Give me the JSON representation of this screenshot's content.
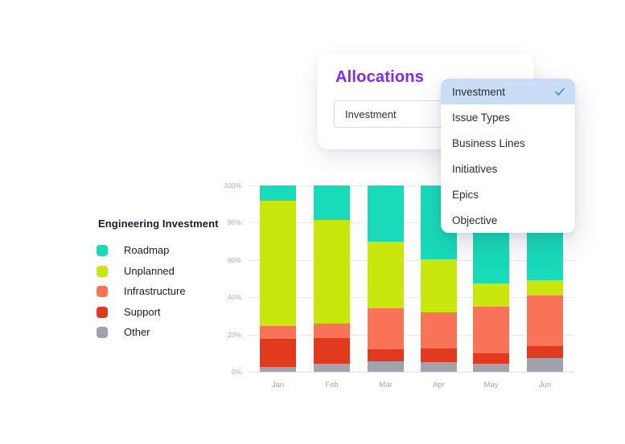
{
  "card": {
    "title": "Allocations",
    "title_color": "#8826e9",
    "select": {
      "value": "Investment"
    }
  },
  "dropdown": {
    "items": [
      {
        "label": "Investment",
        "selected": true
      },
      {
        "label": "Issue Types",
        "selected": false
      },
      {
        "label": "Business Lines",
        "selected": false
      },
      {
        "label": "Initiatives",
        "selected": false
      },
      {
        "label": "Epics",
        "selected": false
      },
      {
        "label": "Objective",
        "selected": false
      }
    ],
    "highlight_color": "#c9def6",
    "check_color": "#3d8cdb"
  },
  "legend": {
    "title": "Engineering Investment",
    "items": [
      {
        "label": "Roadmap",
        "color": "#19dbb9"
      },
      {
        "label": "Unplanned",
        "color": "#c9e70d"
      },
      {
        "label": "Infrastructure",
        "color": "#f97358"
      },
      {
        "label": "Support",
        "color": "#e23a1e"
      },
      {
        "label": "Other",
        "color": "#a2a1ac"
      }
    ]
  },
  "chart_data": {
    "type": "bar",
    "stacked": true,
    "title": "Engineering Investment",
    "categories": [
      "Jan",
      "Feb",
      "Mar",
      "Apr",
      "May",
      "Jun"
    ],
    "series": [
      {
        "name": "Roadmap",
        "color": "#19dbb9",
        "values": [
          8,
          18.5,
          30,
          39.5,
          52.5,
          51
        ]
      },
      {
        "name": "Unplanned",
        "color": "#c9e70d",
        "values": [
          67.5,
          55.5,
          36,
          28.5,
          12.5,
          8
        ]
      },
      {
        "name": "Infrastructure",
        "color": "#f97358",
        "values": [
          7,
          8,
          22,
          19.5,
          25,
          27
        ]
      },
      {
        "name": "Support",
        "color": "#e23a1e",
        "values": [
          15,
          13.5,
          6.5,
          7.5,
          5.5,
          6.5
        ]
      },
      {
        "name": "Other",
        "color": "#a2a1ac",
        "values": [
          2.5,
          4.5,
          5.5,
          5,
          4.5,
          7.5
        ]
      }
    ],
    "stack_order_bottom_to_top": [
      "Other",
      "Support",
      "Infrastructure",
      "Unplanned",
      "Roadmap"
    ],
    "y_tick_labels": [
      "100%",
      "80%",
      "60%",
      "40%",
      "20%",
      "0%"
    ],
    "ylim": [
      0,
      100
    ],
    "unit": "%",
    "grid": true,
    "legend_position": "left"
  }
}
